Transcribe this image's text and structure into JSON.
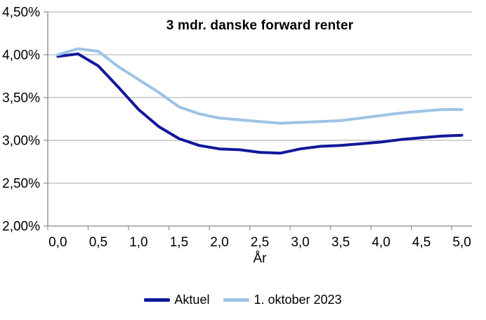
{
  "chart_data": {
    "type": "line",
    "title": "3 mdr. danske forward renter",
    "xlabel": "År",
    "ylabel": "",
    "x": [
      0.0,
      0.25,
      0.5,
      0.75,
      1.0,
      1.25,
      1.5,
      1.75,
      2.0,
      2.25,
      2.5,
      2.75,
      3.0,
      3.25,
      3.5,
      3.75,
      4.0,
      4.25,
      4.5,
      4.75,
      5.0
    ],
    "series": [
      {
        "name": "Aktuel",
        "color": "#11189B",
        "values": [
          3.98,
          4.01,
          3.87,
          3.62,
          3.36,
          3.16,
          3.02,
          2.94,
          2.9,
          2.89,
          2.86,
          2.85,
          2.9,
          2.93,
          2.94,
          2.96,
          2.98,
          3.01,
          3.03,
          3.05,
          3.06
        ]
      },
      {
        "name": "1. oktober 2023",
        "color": "#9DC3E6",
        "values": [
          4.0,
          4.07,
          4.04,
          3.86,
          3.71,
          3.56,
          3.39,
          3.31,
          3.26,
          3.24,
          3.22,
          3.2,
          3.21,
          3.22,
          3.23,
          3.26,
          3.29,
          3.32,
          3.34,
          3.36,
          3.36
        ]
      }
    ],
    "xlim": [
      0,
      5
    ],
    "ylim": [
      2.0,
      4.5
    ],
    "y_ticks": [
      2.0,
      2.5,
      3.0,
      3.5,
      4.0,
      4.5
    ],
    "y_tick_labels": [
      "2,00%",
      "2,50%",
      "3,00%",
      "3,50%",
      "4,00%",
      "4,50%"
    ],
    "x_ticks": [
      0.0,
      0.5,
      1.0,
      1.5,
      2.0,
      2.5,
      3.0,
      3.5,
      4.0,
      4.5,
      5.0
    ],
    "x_tick_labels": [
      "0,0",
      "0,5",
      "1,0",
      "1,5",
      "2,0",
      "2,5",
      "3,0",
      "3,5",
      "4,0",
      "4,5",
      "5,0"
    ],
    "grid": true,
    "legend_position": "bottom",
    "colors": {
      "background": "#FFFFFF",
      "gridline": "#C6C6C6",
      "axis": "#9B9B9B",
      "text": "#000000"
    }
  }
}
